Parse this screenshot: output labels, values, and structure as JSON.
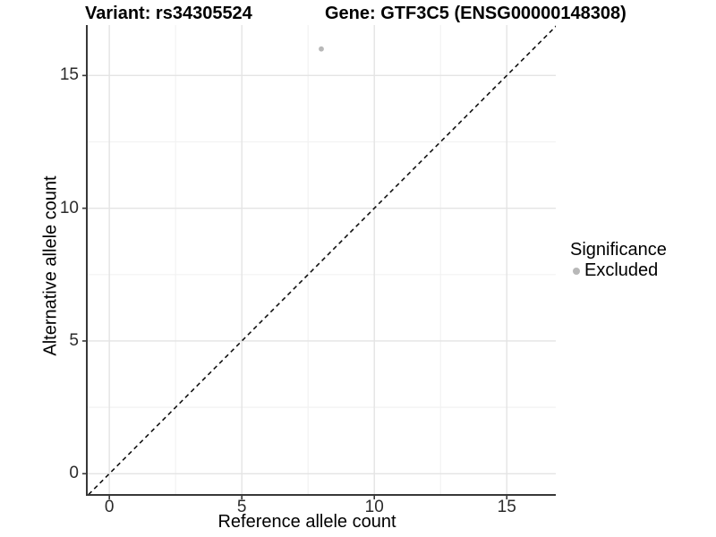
{
  "title": {
    "variant": "Variant: rs34305524",
    "gene": "Gene: GTF3C5 (ENSG00000148308)"
  },
  "axes": {
    "x": {
      "label": "Reference allele count"
    },
    "y": {
      "label": "Alternative allele count"
    }
  },
  "legend": {
    "title": "Significance",
    "items": [
      {
        "label": "Excluded",
        "color": "#b8b8b8"
      }
    ]
  },
  "colors": {
    "point_excluded": "#b8b8b8",
    "axis_line": "#383838",
    "grid_major": "#e4e4e4",
    "grid_minor": "#f2f2f2",
    "reference_line": "#111111",
    "background": "#ffffff"
  },
  "chart_data": {
    "type": "scatter",
    "title": "Variant: rs34305524 — Gene: GTF3C5 (ENSG00000148308)",
    "xlabel": "Reference allele count",
    "ylabel": "Alternative allele count",
    "xlim": [
      -0.85,
      16.85
    ],
    "ylim": [
      -0.8,
      16.9
    ],
    "x_ticks": [
      0,
      5,
      10,
      15
    ],
    "y_ticks": [
      0,
      5,
      10,
      15
    ],
    "x_minor_ticks": [
      2.5,
      7.5,
      12.5
    ],
    "y_minor_ticks": [
      2.5,
      7.5,
      12.5
    ],
    "grid": "major+minor",
    "legend_position": "right",
    "series": [
      {
        "name": "Excluded",
        "color": "#b8b8b8",
        "points": [
          {
            "x": 8,
            "y": 16
          }
        ]
      }
    ],
    "reference_line": {
      "kind": "identity y=x",
      "style": "dashed",
      "from": [
        -1,
        -1
      ],
      "to": [
        17.5,
        17.5
      ]
    }
  }
}
